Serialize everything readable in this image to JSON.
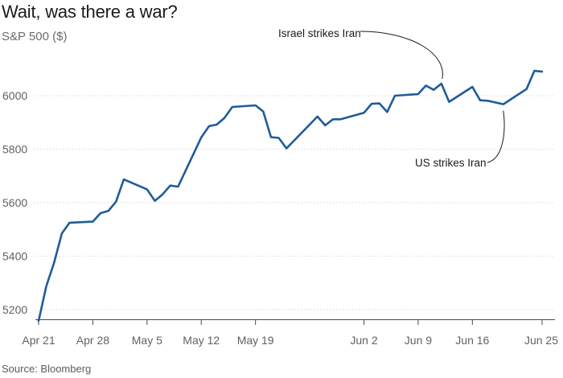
{
  "chart_data": {
    "type": "line",
    "title": "Wait, was there a war?",
    "subtitle": "S&P 500 ($)",
    "source": "Source: Bloomberg",
    "xlabel": "",
    "ylabel": "",
    "x": [
      "2025-04-21",
      "2025-04-22",
      "2025-04-23",
      "2025-04-24",
      "2025-04-25",
      "2025-04-28",
      "2025-04-29",
      "2025-04-30",
      "2025-05-01",
      "2025-05-02",
      "2025-05-05",
      "2025-05-06",
      "2025-05-07",
      "2025-05-08",
      "2025-05-09",
      "2025-05-12",
      "2025-05-13",
      "2025-05-14",
      "2025-05-15",
      "2025-05-16",
      "2025-05-19",
      "2025-05-20",
      "2025-05-21",
      "2025-05-22",
      "2025-05-23",
      "2025-05-27",
      "2025-05-28",
      "2025-05-29",
      "2025-05-30",
      "2025-06-02",
      "2025-06-03",
      "2025-06-04",
      "2025-06-05",
      "2025-06-06",
      "2025-06-09",
      "2025-06-10",
      "2025-06-11",
      "2025-06-12",
      "2025-06-13",
      "2025-06-16",
      "2025-06-17",
      "2025-06-18",
      "2025-06-20",
      "2025-06-23",
      "2025-06-24",
      "2025-06-25"
    ],
    "series": [
      {
        "values": [
          5158,
          5288,
          5376,
          5485,
          5525,
          5529,
          5561,
          5569,
          5604,
          5687,
          5650,
          5607,
          5631,
          5664,
          5660,
          5844,
          5886,
          5892,
          5917,
          5958,
          5964,
          5941,
          5845,
          5842,
          5803,
          5922,
          5889,
          5912,
          5912,
          5936,
          5970,
          5971,
          5939,
          6000,
          6006,
          6038,
          6022,
          6045,
          5977,
          6033,
          5983,
          5981,
          5968,
          6025,
          6093,
          6090
        ]
      }
    ],
    "ylim": [
      5150,
      6140
    ],
    "y_ticks": [
      5200,
      5400,
      5600,
      5800,
      6000
    ],
    "x_ticks": [
      {
        "date": "2025-04-21",
        "label": "Apr 21"
      },
      {
        "date": "2025-04-28",
        "label": "Apr 28"
      },
      {
        "date": "2025-05-05",
        "label": "May 5"
      },
      {
        "date": "2025-05-12",
        "label": "May 12"
      },
      {
        "date": "2025-05-19",
        "label": "May 19"
      },
      {
        "date": "2025-06-02",
        "label": "Jun 2"
      },
      {
        "date": "2025-06-09",
        "label": "Jun 9"
      },
      {
        "date": "2025-06-16",
        "label": "Jun 16"
      },
      {
        "date": "2025-06-25",
        "label": "Jun 25"
      }
    ],
    "annotations": [
      {
        "text": "Israel strikes Iran",
        "date": "2025-06-12",
        "value": 6045
      },
      {
        "text": "US strikes Iran",
        "date": "2025-06-20",
        "value": 5968
      }
    ],
    "grid": true,
    "legend": "none",
    "colors": {
      "line": "#1f5c99",
      "grid": "#dcd8d4",
      "axis": "#4a4a4a",
      "annotation": "#1f1a17"
    }
  }
}
